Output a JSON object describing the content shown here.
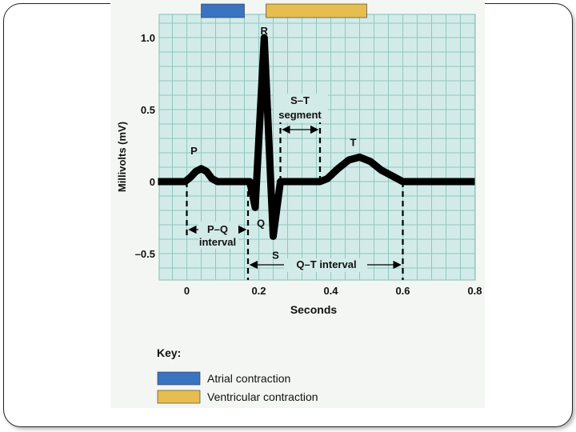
{
  "colors": {
    "atrial": "#3a74c0",
    "ventricular": "#e6bd4f",
    "grid_bg": "#d3ebe8",
    "grid_line": "#8fc7c0",
    "trace": "#000000"
  },
  "key": {
    "title": "Key:",
    "atrial_label": "Atrial contraction",
    "ventricular_label": "Ventricular contraction"
  },
  "annotations": {
    "st_line1": "S–T",
    "st_line2": "segment",
    "pq_line1": "P–Q",
    "pq_line2": "interval",
    "qt": "Q–T interval"
  },
  "chart_data": {
    "type": "line",
    "title": "",
    "xlabel": "Seconds",
    "ylabel": "Millivolts (mV)",
    "xlim": [
      -0.08,
      0.8
    ],
    "ylim": [
      -0.7,
      1.1
    ],
    "xticks": [
      0,
      0.2,
      0.4,
      0.6,
      0.8
    ],
    "xtick_labels": [
      "0",
      "0.2",
      "0.4",
      "0.6",
      "0.8"
    ],
    "yticks": [
      1.0,
      0.5,
      0,
      -0.5
    ],
    "ytick_labels": [
      "1.0",
      "0.5",
      "0",
      "–0.5"
    ],
    "grid": true,
    "series": [
      {
        "x": [
          -0.08,
          -0.005,
          0.01,
          0.025,
          0.04,
          0.055,
          0.07,
          0.085,
          0.17,
          0.175,
          0.19,
          0.215,
          0.24,
          0.26,
          0.37,
          0.39,
          0.42,
          0.45,
          0.48,
          0.51,
          0.54,
          0.6,
          0.8
        ],
        "y": [
          0,
          0,
          0.03,
          0.07,
          0.09,
          0.07,
          0.02,
          0,
          0,
          0,
          -0.18,
          1.0,
          -0.38,
          0,
          0,
          0.02,
          0.09,
          0.15,
          0.17,
          0.14,
          0.08,
          0,
          0
        ]
      }
    ],
    "points": [
      {
        "label": "P",
        "x": 0.04,
        "y": 0.09
      },
      {
        "label": "R",
        "x": 0.215,
        "y": 1.0
      },
      {
        "label": "Q",
        "x": 0.19,
        "y": -0.18
      },
      {
        "label": "S",
        "x": 0.24,
        "y": -0.38
      },
      {
        "label": "T",
        "x": 0.48,
        "y": 0.17
      }
    ],
    "intervals": [
      {
        "name": "P–Q interval",
        "start": 0,
        "end": 0.17
      },
      {
        "name": "S–T segment",
        "start": 0.26,
        "end": 0.37
      },
      {
        "name": "Q–T interval",
        "start": 0.17,
        "end": 0.6
      }
    ],
    "contraction_bars": [
      {
        "name": "Atrial contraction",
        "start": 0.04,
        "end": 0.16
      },
      {
        "name": "Ventricular contraction",
        "start": 0.22,
        "end": 0.5
      }
    ]
  }
}
